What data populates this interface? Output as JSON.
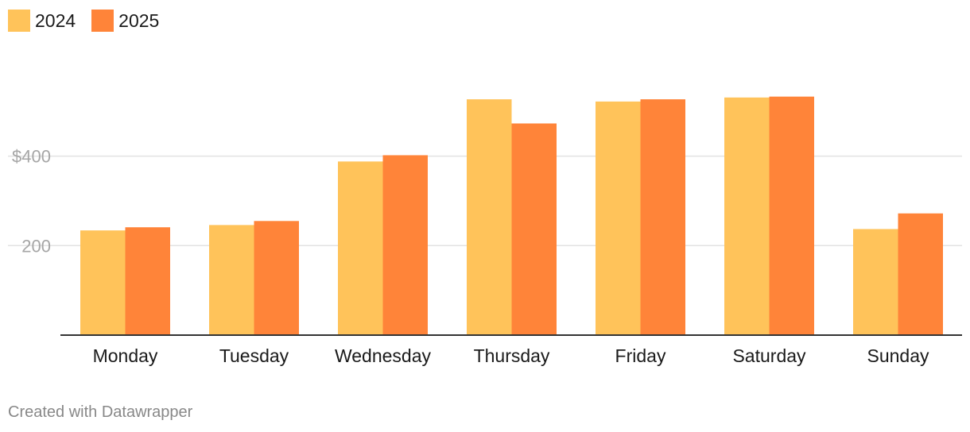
{
  "chart_data": {
    "type": "bar",
    "categories": [
      "Monday",
      "Tuesday",
      "Wednesday",
      "Thursday",
      "Friday",
      "Saturday",
      "Sunday"
    ],
    "series": [
      {
        "name": "2024",
        "color": "#ffc35a",
        "values": [
          234,
          246,
          388,
          527,
          522,
          531,
          237
        ]
      },
      {
        "name": "2025",
        "color": "#ff8439",
        "values": [
          241,
          255,
          402,
          473,
          527,
          533,
          272
        ]
      }
    ],
    "yticks": [
      {
        "value": 200,
        "label": "200"
      },
      {
        "value": 400,
        "label": "$400"
      }
    ],
    "ylim": [
      0,
      640
    ],
    "grid": true,
    "legend_position": "top-left"
  },
  "footer": {
    "credit": "Created with Datawrapper"
  }
}
